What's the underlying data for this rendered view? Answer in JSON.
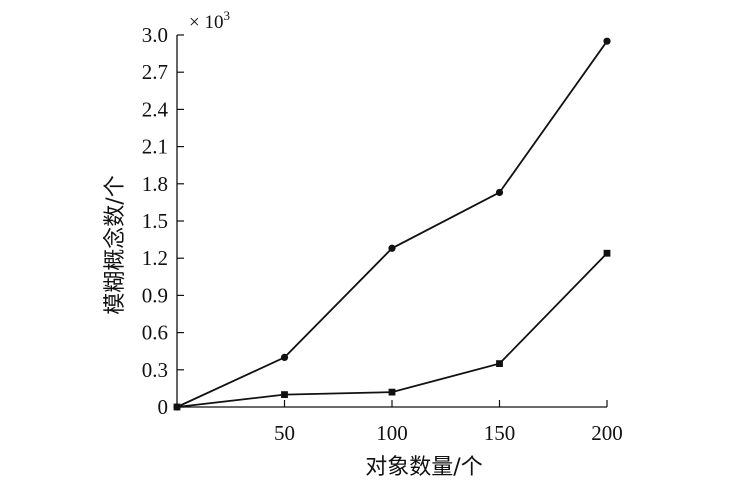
{
  "chart_data": {
    "type": "line",
    "xlabel": "对象数量/个",
    "ylabel": "模糊概念数/个",
    "y_scale_note": "× 10",
    "y_scale_exp": "3",
    "x": [
      0,
      50,
      100,
      150,
      200
    ],
    "xticks": [
      50,
      100,
      150,
      200
    ],
    "xlim": [
      0,
      200
    ],
    "yticks": [
      "0",
      "0.3",
      "0.6",
      "0.9",
      "1.2",
      "1.5",
      "1.8",
      "2.1",
      "2.4",
      "2.7",
      "3.0"
    ],
    "ylim": [
      0,
      3.0
    ],
    "grid": false,
    "series": [
      {
        "marker": "circle",
        "values": [
          0,
          0.4,
          1.28,
          1.73,
          2.95
        ]
      },
      {
        "marker": "square",
        "values": [
          0,
          0.1,
          0.12,
          0.35,
          1.24
        ]
      }
    ]
  }
}
